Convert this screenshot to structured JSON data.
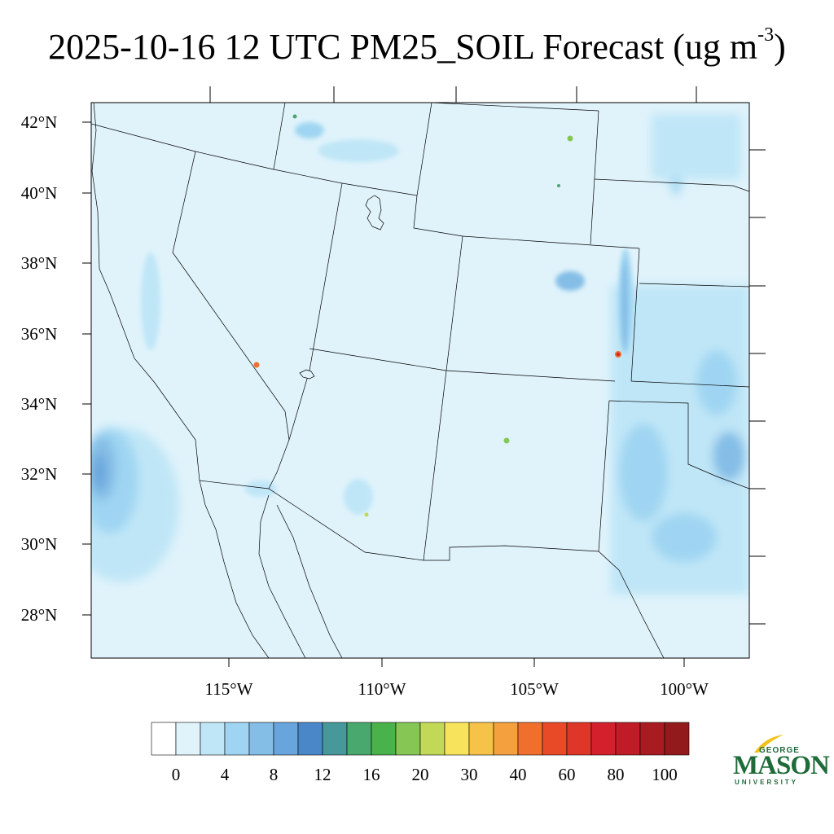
{
  "title": {
    "main": "2025-10-16 12 UTC PM25_SOIL Forecast (ug m",
    "sup": "-3",
    "close": ")"
  },
  "map": {
    "background_color": "#e0f3fb",
    "boundary_color": "#000000",
    "lat_labels": [
      "42°N",
      "40°N",
      "38°N",
      "36°N",
      "34°N",
      "32°N",
      "30°N",
      "28°N"
    ],
    "lon_labels": [
      "115°W",
      "110°W",
      "105°W",
      "100°W"
    ]
  },
  "colorbar": {
    "colors": [
      "#ffffff",
      "#e0f3fb",
      "#bfe6f7",
      "#9fd5f2",
      "#84bde6",
      "#68a5dc",
      "#4a87c8",
      "#46989a",
      "#48a86d",
      "#4ab24a",
      "#86c655",
      "#c2d957",
      "#f7e45c",
      "#f6c248",
      "#f4a03e",
      "#f06f2c",
      "#e84a27",
      "#de3628",
      "#d3202c",
      "#bf1c27",
      "#a81b21",
      "#921a1c"
    ],
    "labels": [
      "0",
      "4",
      "8",
      "12",
      "16",
      "20",
      "30",
      "40",
      "60",
      "80",
      "100"
    ]
  },
  "logo": {
    "top": "GEORGE",
    "main": "MASON",
    "bottom": "UNIVERSITY",
    "color": "#1f6b3a",
    "accent": "#f2c21b"
  }
}
